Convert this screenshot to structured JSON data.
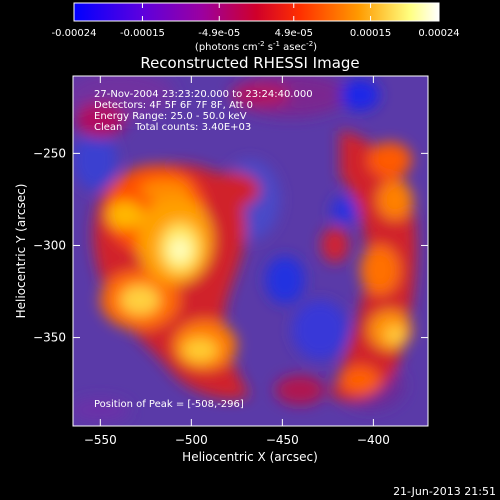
{
  "colorbar": {
    "ticks": [
      "-0.00024",
      "-0.00015",
      "-4.9e-05",
      "4.9e-05",
      "0.00015",
      "0.00024"
    ],
    "tick_values": [
      -0.00024,
      -0.00015,
      -4.9e-05,
      4.9e-05,
      0.00015,
      0.00024
    ],
    "range": [
      -0.00024,
      0.00024
    ],
    "unit_parts": [
      "(photons cm",
      "-2",
      " s",
      "-1",
      " asec",
      "-2",
      ")"
    ],
    "colors": [
      "#0000ff",
      "#5a00e0",
      "#9b00a0",
      "#d0002a",
      "#ff3000",
      "#ff9a00",
      "#ffff80",
      "#ffffff"
    ]
  },
  "image": {
    "title": "Reconstructed RHESSI Image",
    "annotations": [
      "27-Nov-2004 23:23:20.000 to 23:24:40.000",
      "Detectors: 4F 5F 6F 7F 8F, Att 0",
      "Energy Range: 25.0 - 50.0 keV",
      "Clean    Total counts: 3.40E+03"
    ],
    "peak_label": "Position of Peak = [-508,-296]"
  },
  "axes": {
    "xlabel": "Heliocentric X (arcsec)",
    "ylabel": "Heliocentric Y (arcsec)",
    "x_range": [
      -565,
      -370
    ],
    "y_range": [
      -398,
      -208
    ],
    "xticks": [
      -550,
      -500,
      -450,
      -400
    ],
    "xtick_labels": [
      "−550",
      "−500",
      "−450",
      "−400"
    ],
    "yticks": [
      -250,
      -300,
      -350
    ],
    "ytick_labels": [
      "−250",
      "−300",
      "−350"
    ]
  },
  "footer": {
    "timestamp": "21-Jun-2013 21:51"
  }
}
